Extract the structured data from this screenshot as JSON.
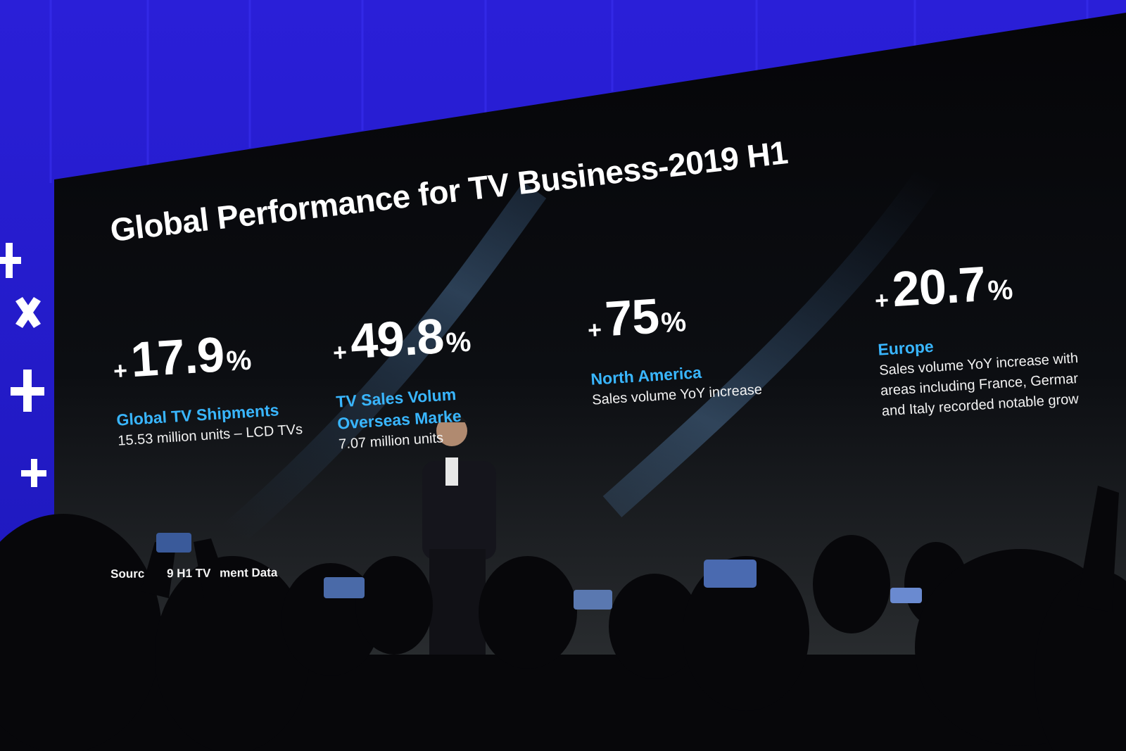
{
  "slide": {
    "title": "Global Performance for TV Business-2019 H1",
    "stats": [
      {
        "sign": "+",
        "value": "17.9",
        "unit": "%",
        "heading_lines": [
          "Global TV Shipments"
        ],
        "detail_lines": [
          "15.53 million units – LCD TVs"
        ]
      },
      {
        "sign": "+",
        "value": "49.8",
        "unit": "%",
        "heading_lines": [
          "TV Sales Volum",
          "Overseas Marke"
        ],
        "detail_lines": [
          "7.07 million units"
        ]
      },
      {
        "sign": "+",
        "value": "75",
        "unit": "%",
        "heading_lines": [
          "North America"
        ],
        "detail_lines": [
          "Sales volume YoY increase"
        ]
      },
      {
        "sign": "+",
        "value": "20.7",
        "unit": "%",
        "heading_lines": [
          "Europe"
        ],
        "detail_lines": [
          "Sales volume YoY increase with",
          "areas including France, Germar",
          "and Italy recorded notable grow"
        ]
      }
    ],
    "source": [
      "Sourc",
      "9 H1 TV",
      "ment Data"
    ]
  }
}
